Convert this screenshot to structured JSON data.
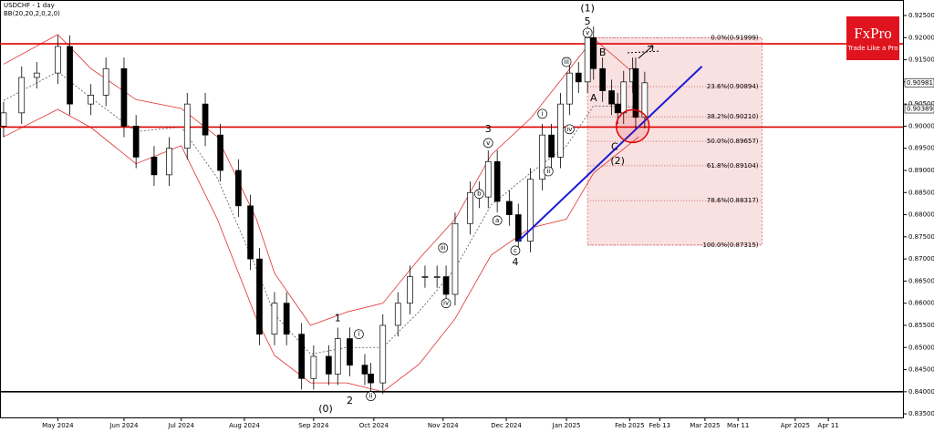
{
  "chart_data": {
    "type": "candlestick",
    "title": "USDCHF - 1 day",
    "subtitle": "BB(20,20,2,0,2,0)",
    "brand": {
      "name": "FxPro",
      "tagline": "Trade Like a Pro"
    },
    "xlim": [
      -1.2,
      298.8
    ],
    "ylim": [
      0.8342,
      0.9285
    ],
    "yticks": [
      {
        "value": 0.925,
        "label": "0.92500"
      },
      {
        "value": 0.92,
        "label": "0.92000"
      },
      {
        "value": 0.915,
        "label": "0.91500"
      },
      {
        "value": 0.91,
        "label": "0.91000"
      },
      {
        "value": 0.905,
        "label": "0.90500"
      },
      {
        "value": 0.9,
        "label": "0.90000"
      },
      {
        "value": 0.895,
        "label": "0.89500"
      },
      {
        "value": 0.89,
        "label": "0.89000"
      },
      {
        "value": 0.885,
        "label": "0.88500"
      },
      {
        "value": 0.88,
        "label": "0.88000"
      },
      {
        "value": 0.875,
        "label": "0.87500"
      },
      {
        "value": 0.87,
        "label": "0.87000"
      },
      {
        "value": 0.865,
        "label": "0.86500"
      },
      {
        "value": 0.86,
        "label": "0.86000"
      },
      {
        "value": 0.855,
        "label": "0.85500"
      },
      {
        "value": 0.85,
        "label": "0.85000"
      },
      {
        "value": 0.845,
        "label": "0.84500"
      },
      {
        "value": 0.84,
        "label": "0.84000"
      },
      {
        "value": 0.835,
        "label": "0.83500"
      }
    ],
    "xticks": [
      {
        "value": 18,
        "label": "May 2024"
      },
      {
        "value": 40,
        "label": "Jun 2024"
      },
      {
        "value": 59,
        "label": "Jul 2024"
      },
      {
        "value": 80,
        "label": "Aug 2024"
      },
      {
        "value": 103,
        "label": "Sep 2024"
      },
      {
        "value": 123,
        "label": "Oct 2024"
      },
      {
        "value": 146,
        "label": "Nov 2024"
      },
      {
        "value": 167,
        "label": "Dec 2024"
      },
      {
        "value": 187,
        "label": "Jan 2025"
      },
      {
        "value": 208,
        "label": "Feb 2025"
      },
      {
        "value": 218,
        "label": "Feb 13"
      },
      {
        "value": 233,
        "label": "Mar 2025"
      },
      {
        "value": 244,
        "label": "Mar 11"
      },
      {
        "value": 263,
        "label": "Apr 2025"
      },
      {
        "value": 274,
        "label": "Apr 11"
      }
    ],
    "x": [
      0,
      6,
      11,
      18,
      22,
      29,
      34,
      40,
      44,
      50,
      55,
      61,
      67,
      72,
      78,
      82,
      85,
      90,
      94,
      99,
      103,
      108,
      111,
      115,
      120,
      122,
      126,
      131,
      135,
      140,
      144,
      147,
      150,
      155,
      158,
      161,
      164,
      168,
      171,
      175,
      179,
      182,
      185,
      188,
      191,
      194,
      196,
      199,
      202,
      204,
      206,
      209,
      210,
      213
    ],
    "open": [
      0.9,
      0.903,
      0.911,
      0.912,
      0.918,
      0.905,
      0.907,
      0.913,
      0.9,
      0.893,
      0.889,
      0.895,
      0.905,
      0.898,
      0.89,
      0.882,
      0.87,
      0.853,
      0.86,
      0.853,
      0.843,
      0.848,
      0.844,
      0.852,
      0.846,
      0.844,
      0.842,
      0.855,
      0.86,
      0.866,
      0.866,
      0.866,
      0.862,
      0.878,
      0.885,
      0.884,
      0.892,
      0.883,
      0.88,
      0.874,
      0.888,
      0.898,
      0.893,
      0.905,
      0.912,
      0.91,
      0.92,
      0.913,
      0.908,
      0.905,
      0.903,
      0.91,
      0.913,
      0.902
    ],
    "high": [
      0.9055,
      0.9135,
      0.9145,
      0.9205,
      0.9205,
      0.9095,
      0.9155,
      0.9155,
      0.9025,
      0.8955,
      0.8975,
      0.9075,
      0.9075,
      0.9005,
      0.8925,
      0.8845,
      0.8725,
      0.8625,
      0.8625,
      0.8555,
      0.8505,
      0.8505,
      0.8545,
      0.8545,
      0.8485,
      0.8465,
      0.8575,
      0.8625,
      0.8685,
      0.8685,
      0.8685,
      0.8685,
      0.8805,
      0.8875,
      0.8875,
      0.8945,
      0.8945,
      0.8855,
      0.8825,
      0.8905,
      0.9005,
      0.9005,
      0.9075,
      0.9145,
      0.9145,
      0.9225,
      0.9225,
      0.9155,
      0.9105,
      0.9075,
      0.9125,
      0.9155,
      0.9155,
      0.9123
    ],
    "low": [
      0.8975,
      0.9005,
      0.9085,
      0.9095,
      0.9025,
      0.9025,
      0.9045,
      0.8975,
      0.8905,
      0.8865,
      0.8865,
      0.8925,
      0.8955,
      0.8875,
      0.8795,
      0.8675,
      0.8505,
      0.8505,
      0.8505,
      0.8405,
      0.8405,
      0.8415,
      0.8415,
      0.8435,
      0.8415,
      0.8395,
      0.8395,
      0.8525,
      0.8575,
      0.8635,
      0.8635,
      0.8595,
      0.8595,
      0.8755,
      0.8815,
      0.8815,
      0.8805,
      0.8775,
      0.8715,
      0.8715,
      0.8855,
      0.8905,
      0.8905,
      0.9025,
      0.9075,
      0.9075,
      0.9105,
      0.9055,
      0.9025,
      0.9005,
      0.9005,
      0.9075,
      0.8995,
      0.8995
    ],
    "close": [
      0.903,
      0.911,
      0.912,
      0.918,
      0.905,
      0.907,
      0.913,
      0.9,
      0.893,
      0.889,
      0.895,
      0.905,
      0.898,
      0.89,
      0.882,
      0.87,
      0.853,
      0.86,
      0.853,
      0.843,
      0.848,
      0.844,
      0.852,
      0.846,
      0.844,
      0.842,
      0.855,
      0.86,
      0.866,
      0.866,
      0.866,
      0.862,
      0.878,
      0.885,
      0.884,
      0.892,
      0.883,
      0.88,
      0.874,
      0.888,
      0.898,
      0.893,
      0.905,
      0.912,
      0.91,
      0.92,
      0.913,
      0.908,
      0.905,
      0.903,
      0.91,
      0.913,
      0.902,
      0.9098
    ],
    "bollinger": {
      "color": "#e03030",
      "mid_color": "#555555",
      "x": [
        0,
        18,
        29,
        44,
        59,
        71,
        84,
        90,
        102,
        114,
        126,
        138,
        150,
        162,
        175,
        187,
        196,
        211
      ],
      "upper": [
        0.914,
        0.9207,
        0.913,
        0.906,
        0.904,
        0.8976,
        0.879,
        0.8668,
        0.855,
        0.858,
        0.86,
        0.87,
        0.879,
        0.8935,
        0.9017,
        0.912,
        0.9198,
        0.911
      ],
      "middle": [
        0.9058,
        0.9123,
        0.9064,
        0.8988,
        0.8998,
        0.8883,
        0.8678,
        0.8575,
        0.8485,
        0.85,
        0.85,
        0.8581,
        0.8678,
        0.8822,
        0.8894,
        0.8955,
        0.9046,
        0.9043
      ],
      "lower": [
        0.8976,
        0.9038,
        0.8997,
        0.8915,
        0.8956,
        0.879,
        0.8565,
        0.8482,
        0.842,
        0.842,
        0.84,
        0.8462,
        0.8565,
        0.8709,
        0.877,
        0.879,
        0.8894,
        0.8976
      ]
    },
    "levels": [
      {
        "value": 0.9186,
        "color": "#e00000"
      },
      {
        "value": 0.8998,
        "color": "#e00000"
      },
      {
        "value": 0.84,
        "color": "#000000"
      }
    ],
    "trendline": {
      "x": [
        171,
        232
      ],
      "y": [
        0.874,
        0.9135
      ],
      "color": "#1a1ad6"
    },
    "fib_box": {
      "x": [
        194,
        252
      ],
      "color": "#f3c4c4",
      "levels": [
        {
          "value": 0.91999,
          "label": "0.0%(0.91999)"
        },
        {
          "value": 0.90894,
          "label": "23.6%(0.90894)"
        },
        {
          "value": 0.9021,
          "label": "38.2%(0.90210)"
        },
        {
          "value": 0.89657,
          "label": "50.0%(0.89657)"
        },
        {
          "value": 0.89104,
          "label": "61.8%(0.89104)"
        },
        {
          "value": 0.88317,
          "label": "78.6%(0.88317)"
        },
        {
          "value": 0.87315,
          "label": "100.0%(0.87315)"
        }
      ]
    },
    "price_tags": [
      {
        "value": 0.90981,
        "label": "0.90981"
      },
      {
        "value": 0.90389,
        "label": "0.90389"
      }
    ],
    "highlight": {
      "x": 209,
      "y": 0.9,
      "color": "#e00000"
    },
    "wave_labels": [
      {
        "text": "(1)",
        "x": 194,
        "y": 0.9265
      },
      {
        "text": "5",
        "x": 194,
        "y": 0.9236
      },
      {
        "text": "3",
        "x": 161,
        "y": 0.8993
      },
      {
        "text": "4",
        "x": 170,
        "y": 0.8692
      },
      {
        "text": "1",
        "x": 111,
        "y": 0.8565
      },
      {
        "text": "2",
        "x": 115,
        "y": 0.8379
      },
      {
        "text": "(0)",
        "x": 107,
        "y": 0.8361
      },
      {
        "text": "A",
        "x": 196,
        "y": 0.9063
      },
      {
        "text": "B",
        "x": 199,
        "y": 0.9166
      },
      {
        "text": "C",
        "x": 203,
        "y": 0.8952
      },
      {
        "text": "(2)",
        "x": 204,
        "y": 0.8921
      }
    ],
    "circled_labels": [
      {
        "text": "i",
        "x": 118,
        "y": 0.853
      },
      {
        "text": "ii",
        "x": 122,
        "y": 0.839
      },
      {
        "text": "iii",
        "x": 146,
        "y": 0.8725
      },
      {
        "text": "iv",
        "x": 147,
        "y": 0.86
      },
      {
        "text": "v",
        "x": 161,
        "y": 0.8962
      },
      {
        "text": "b",
        "x": 158,
        "y": 0.8847
      },
      {
        "text": "a",
        "x": 164,
        "y": 0.8787
      },
      {
        "text": "c",
        "x": 170,
        "y": 0.8719
      },
      {
        "text": "i",
        "x": 179,
        "y": 0.9028
      },
      {
        "text": "ii",
        "x": 181,
        "y": 0.8898
      },
      {
        "text": "iii",
        "x": 187,
        "y": 0.9145
      },
      {
        "text": "iv",
        "x": 188,
        "y": 0.8993
      },
      {
        "text": "v",
        "x": 194,
        "y": 0.9211
      }
    ]
  }
}
